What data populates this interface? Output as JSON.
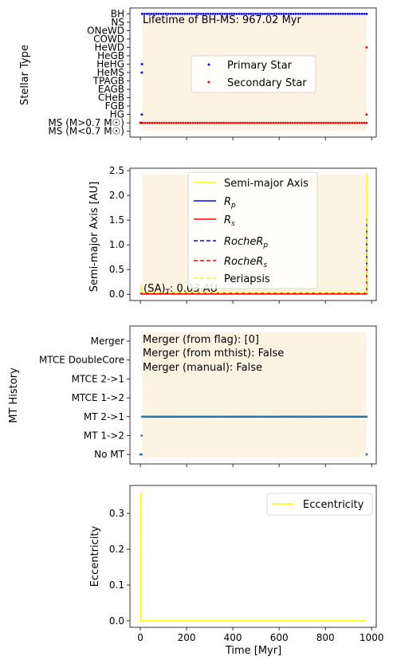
{
  "chart_data": [
    {
      "type": "scatter",
      "ylabel": "Stellar Type",
      "categories": [
        "MS (M<0.7 $M_\\odot$)",
        "MS (M>0.7 $M_\\odot$)",
        "HG",
        "FGB",
        "CHeB",
        "EAGB",
        "TPAGB",
        "HeMS",
        "HeHG",
        "HeGB",
        "HeWD",
        "COWD",
        "ONeWD",
        "NS",
        "BH"
      ],
      "category_display": [
        "MS (M<0.7 M☉)",
        "MS (M>0.7 M☉)",
        "HG",
        "FGB",
        "CHeB",
        "EAGB",
        "TPAGB",
        "HeMS",
        "HeHG",
        "HeGB",
        "HeWD",
        "COWD",
        "ONeWD",
        "NS",
        "BH"
      ],
      "xlim": [
        -45,
        1020
      ],
      "ylim": [
        -0.7,
        14.7
      ],
      "shade": [
        8,
        978
      ],
      "annotation": "Lifetime of BH-MS: 967.02 Myr",
      "legend_position": "center-right",
      "series": [
        {
          "name": "Primary Star",
          "color": "#0000ff",
          "points": [
            [
              0,
              1
            ],
            [
              2,
              1
            ],
            [
              4,
              1
            ],
            [
              5,
              1
            ],
            [
              6,
              2
            ],
            [
              6,
              7
            ],
            [
              6.5,
              7
            ],
            [
              7,
              8
            ],
            [
              7.5,
              8
            ],
            [
              8,
              14
            ],
            [
              978,
              14
            ]
          ],
          "dense": [
            {
              "x_start": 8,
              "x_end": 978,
              "y": 14,
              "count": 95
            }
          ]
        },
        {
          "name": "Secondary Star",
          "color": "#ff0000",
          "points": [
            [
              0,
              1
            ],
            [
              978,
              1
            ],
            [
              978,
              2
            ],
            [
              978,
              10
            ]
          ],
          "dense": [
            {
              "x_start": 0,
              "x_end": 978,
              "y": 1,
              "count": 95
            }
          ]
        }
      ]
    },
    {
      "type": "line",
      "ylabel": "Semi-major Axis [AU]",
      "xlim": [
        -45,
        1020
      ],
      "ylim": [
        -0.125,
        2.55
      ],
      "yticks": [
        0.0,
        0.5,
        1.0,
        1.5,
        2.0,
        2.5
      ],
      "shade": [
        8,
        978
      ],
      "annotation": "(SA)$_T$: 0.03 AU",
      "annotation_display": "(SA)",
      "annotation_sub": "T",
      "annotation_tail": ": 0.03 AU",
      "legend_position": "top-center",
      "series": [
        {
          "name": "Semi-major Axis",
          "color": "#ffff00",
          "dash": false,
          "x": [
            0,
            5,
            6,
            8,
            970,
            978,
            979,
            979
          ],
          "y": [
            0.18,
            0.18,
            0.03,
            0.03,
            0.03,
            0.03,
            2.45,
            0.03
          ]
        },
        {
          "name": "$R_p$",
          "name_display": "R",
          "name_sub": "p",
          "color": "#0000ff",
          "dash": false,
          "x": [
            0,
            978,
            979,
            979
          ],
          "y": [
            0.01,
            0.01,
            1.52,
            0.01
          ]
        },
        {
          "name": "$R_s$",
          "name_display": "R",
          "name_sub": "s",
          "color": "#ff0000",
          "dash": false,
          "x": [
            0,
            978,
            979,
            979
          ],
          "y": [
            0.005,
            0.005,
            0.05,
            0.005
          ]
        },
        {
          "name": "$RocheR_p$",
          "name_display": "RocheR",
          "name_sub": "p",
          "color": "#0000ff",
          "dash": true,
          "x": [
            0,
            978,
            979,
            979
          ],
          "y": [
            0.02,
            0.02,
            1.3,
            0.02
          ]
        },
        {
          "name": "$RocheR_s$",
          "name_display": "RocheR",
          "name_sub": "s",
          "color": "#ff0000",
          "dash": true,
          "x": [
            0,
            978,
            979,
            979
          ],
          "y": [
            0.015,
            0.015,
            0.5,
            0.015
          ]
        },
        {
          "name": "Periapsis",
          "color": "#ffff00",
          "dash": true,
          "x": [
            0,
            5,
            6,
            978,
            979,
            979
          ],
          "y": [
            0.12,
            0.12,
            0.03,
            0.03,
            2.3,
            0.03
          ]
        }
      ]
    },
    {
      "type": "scatter",
      "ylabel": "MT History",
      "categories": [
        "No MT",
        "MT 1->2",
        "MT 2->1",
        "MTCE 1->2",
        "MTCE 2->1",
        "MTCE DoubleCore",
        "Merger"
      ],
      "xlim": [
        -45,
        1020
      ],
      "ylim": [
        -0.5,
        6.8
      ],
      "shade": [
        8,
        978
      ],
      "annotations": [
        "Merger (from flag): [0]",
        "Merger (from mthist): False",
        "Merger (manual): False"
      ],
      "series": [
        {
          "color": "#1f77b4",
          "points": [
            [
              0,
              0
            ],
            [
              3,
              0
            ],
            [
              5,
              0
            ],
            [
              6,
              1
            ],
            [
              978,
              0
            ],
            [
              979,
              0
            ]
          ],
          "dense": [
            {
              "x_start": 8,
              "x_end": 978,
              "y": 2,
              "count": 140
            }
          ]
        }
      ]
    },
    {
      "type": "line",
      "ylabel": "Eccentricity",
      "xlabel": "Time [Myr]",
      "xlim": [
        -45,
        1020
      ],
      "xticks": [
        0,
        200,
        400,
        600,
        800,
        1000
      ],
      "ylim": [
        -0.018,
        0.378
      ],
      "yticks": [
        0.0,
        0.1,
        0.2,
        0.3
      ],
      "legend_position": "top-right",
      "series": [
        {
          "name": "Eccentricity",
          "color": "#ffff00",
          "x": [
            0,
            1,
            2,
            3,
            978
          ],
          "y": [
            0.0,
            0.0,
            0.36,
            0.0,
            0.0
          ]
        }
      ]
    }
  ]
}
